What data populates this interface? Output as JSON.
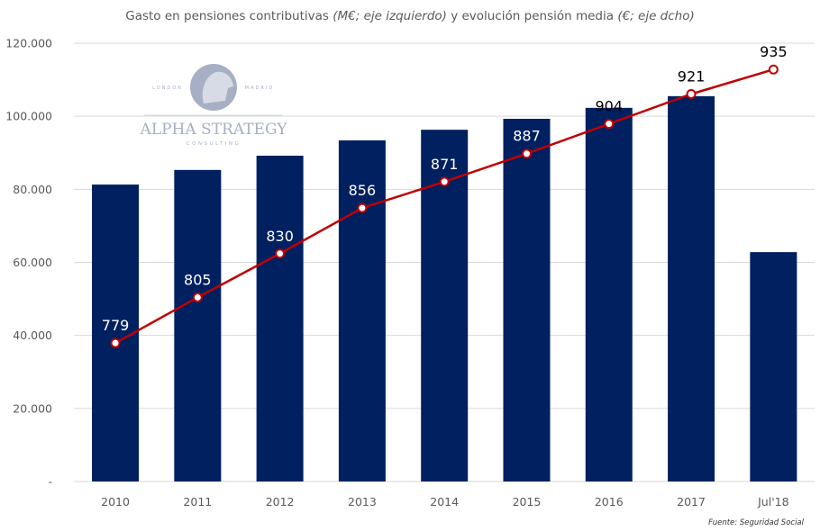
{
  "title_parts": [
    {
      "text": "Gasto en pensiones contributivas ",
      "italic": false
    },
    {
      "text": "(M€; eje izquierdo)",
      "italic": true
    },
    {
      "text": " y evolución pensión media ",
      "italic": false
    },
    {
      "text": "(€; eje dcho)",
      "italic": true
    }
  ],
  "source": "Fuente: Seguridad Social",
  "logo": {
    "name": "ALPHA STRATEGY",
    "sub": "CONSULTING",
    "left": "LONDON",
    "right": "MADRID"
  },
  "colors": {
    "bar": "#002060",
    "line": "#C00000",
    "grid": "#D9D9D9"
  },
  "chart_data": {
    "type": "bar+line",
    "title": "Gasto en pensiones contributivas (M€; eje izquierdo) y evolución pensión media (€; eje dcho)",
    "categories": [
      "2010",
      "2011",
      "2012",
      "2013",
      "2014",
      "2015",
      "2016",
      "2017",
      "Jul'18"
    ],
    "series": [
      {
        "type": "bar",
        "axis": "left",
        "values": [
          81300,
          85300,
          89200,
          93400,
          96300,
          99300,
          102300,
          105500,
          62800
        ]
      },
      {
        "type": "line",
        "axis": "right",
        "values": [
          779,
          805,
          830,
          856,
          871,
          887,
          904,
          921,
          935
        ],
        "data_labels": [
          "779",
          "805",
          "830",
          "856",
          "871",
          "887",
          "904",
          "921",
          "935"
        ]
      }
    ],
    "y_left": {
      "lim": [
        0,
        120000
      ],
      "ticks": [
        "-",
        "20.000",
        "40.000",
        "60.000",
        "80.000",
        "100.000",
        "120.000"
      ],
      "tick_values": [
        0,
        20000,
        40000,
        60000,
        80000,
        100000,
        120000
      ]
    },
    "y_right": {
      "lim": [
        700,
        950
      ],
      "visible": false
    },
    "grid": true,
    "legend": "none"
  }
}
